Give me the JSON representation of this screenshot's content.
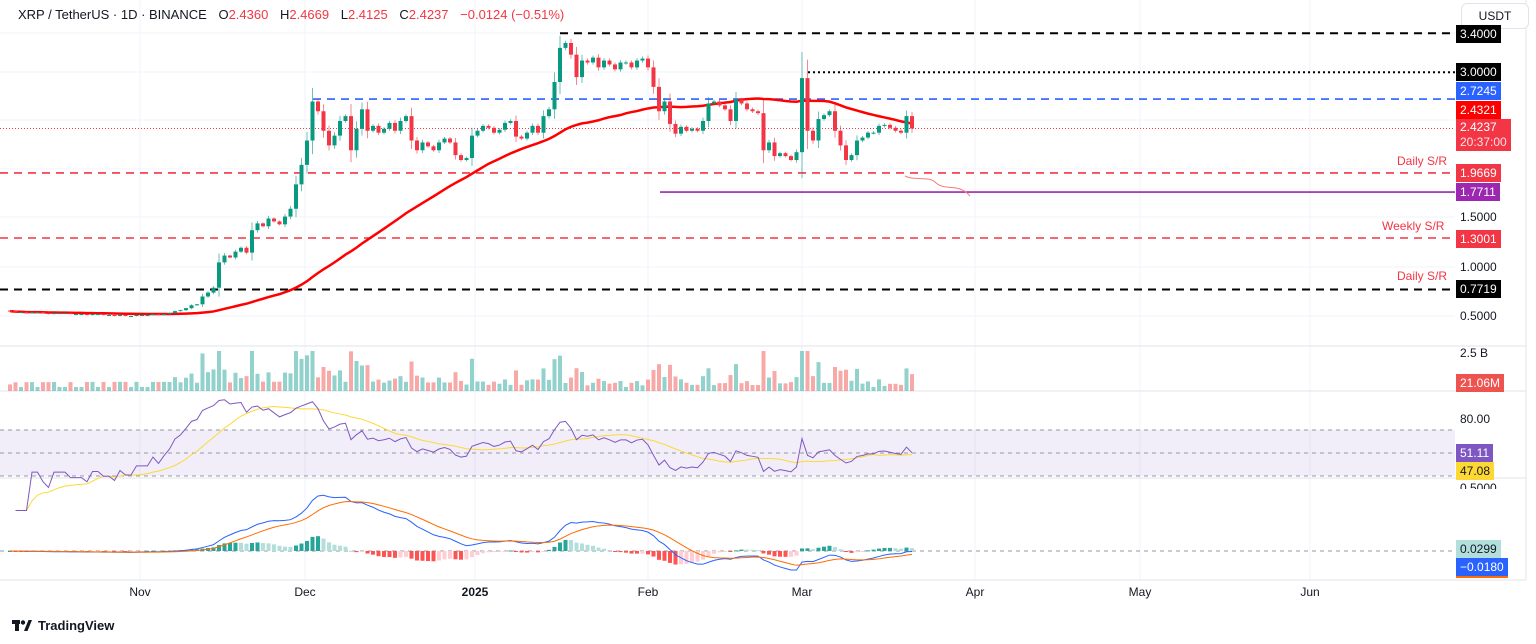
{
  "header": {
    "symbol": "XRP / TetherUS · 1D · BINANCE",
    "open_label": "O",
    "open": "2.4360",
    "high_label": "H",
    "high": "2.4669",
    "low_label": "L",
    "low": "2.4125",
    "close_label": "C",
    "close": "2.4237",
    "change": "−0.0124 (−0.51%)"
  },
  "currency_button": "USDT",
  "price_axis": {
    "ticks": [
      "1.5000",
      "1.0000",
      "0.5000"
    ],
    "labels": {
      "top_level": "3.4000",
      "level_3": "3.0000",
      "blue_level": "2.7245",
      "ma": "2.4321",
      "last": "2.4237",
      "countdown": "20:37:00",
      "daily_sr": "1.9669",
      "purple_level": "1.7711",
      "weekly_sr": "1.3001",
      "daily_sr_low": "0.7719"
    }
  },
  "annotations": {
    "daily_sr_1": "Daily S/R",
    "weekly_sr": "Weekly S/R",
    "daily_sr_2": "Daily S/R"
  },
  "volume_axis": {
    "tick": "2.5 B",
    "last": "21.06M"
  },
  "rsi_axis": {
    "tick": "80.00",
    "rsi": "51.11",
    "rsi_ma": "47.08"
  },
  "macd_axis": {
    "tick": "0.5000",
    "histogram": "0.0299",
    "macd": "−0.0180"
  },
  "time_axis": [
    "Nov",
    "Dec",
    "2025",
    "Feb",
    "Mar",
    "Apr",
    "May",
    "Jun"
  ],
  "brand": "TradingView",
  "colors": {
    "up": "#089981",
    "down": "#f23645",
    "ma": "#ff0000",
    "blue": "#2962ff",
    "purple": "#9c27b0",
    "rsi": "#7e57c2",
    "rsi_ma": "#fdd835",
    "macd": "#2962ff",
    "signal": "#ff6d00"
  },
  "chart_data": {
    "type": "candlestick",
    "timeframe": "1D",
    "x_range": [
      "2024-10-09",
      "2025-03-21"
    ],
    "ylim": [
      0.45,
      3.45
    ],
    "closes": [
      0.55,
      0.54,
      0.54,
      0.53,
      0.54,
      0.54,
      0.53,
      0.52,
      0.53,
      0.53,
      0.53,
      0.52,
      0.52,
      0.52,
      0.51,
      0.52,
      0.52,
      0.51,
      0.51,
      0.5,
      0.51,
      0.5,
      0.5,
      0.51,
      0.51,
      0.51,
      0.52,
      0.51,
      0.52,
      0.53,
      0.55,
      0.56,
      0.58,
      0.61,
      0.62,
      0.7,
      0.74,
      0.79,
      1.05,
      1.12,
      1.1,
      1.16,
      1.2,
      1.15,
      1.38,
      1.45,
      1.42,
      1.5,
      1.47,
      1.44,
      1.52,
      1.6,
      1.85,
      2.05,
      2.3,
      2.7,
      2.6,
      2.4,
      2.25,
      2.35,
      2.5,
      2.55,
      2.2,
      2.42,
      2.62,
      2.4,
      2.45,
      2.38,
      2.42,
      2.48,
      2.4,
      2.5,
      2.55,
      2.3,
      2.2,
      2.28,
      2.24,
      2.2,
      2.28,
      2.32,
      2.28,
      2.15,
      2.1,
      2.12,
      2.35,
      2.4,
      2.45,
      2.43,
      2.38,
      2.41,
      2.48,
      2.5,
      2.34,
      2.32,
      2.38,
      2.45,
      2.38,
      2.55,
      2.62,
      2.9,
      3.25,
      3.3,
      3.18,
      2.95,
      3.12,
      3.1,
      3.15,
      3.05,
      3.12,
      3.08,
      3.03,
      3.1,
      3.1,
      3.05,
      3.12,
      3.14,
      3.05,
      2.85,
      2.6,
      2.7,
      2.47,
      2.37,
      2.44,
      2.4,
      2.42,
      2.4,
      2.5,
      2.68,
      2.7,
      2.66,
      2.62,
      2.5,
      2.72,
      2.68,
      2.62,
      2.6,
      2.58,
      2.2,
      2.28,
      2.14,
      2.17,
      2.14,
      2.1,
      2.18,
      2.94,
      2.4,
      2.3,
      2.52,
      2.56,
      2.6,
      2.4,
      2.25,
      2.1,
      2.15,
      2.3,
      2.33,
      2.38,
      2.38,
      2.45,
      2.46,
      2.43,
      2.4,
      2.38,
      2.55,
      2.4237
    ],
    "horizontal_levels": [
      {
        "value": 3.4,
        "style": "dashed",
        "color": "#000000"
      },
      {
        "value": 3.0,
        "style": "dotted",
        "color": "#000000"
      },
      {
        "value": 2.7245,
        "style": "dashed",
        "color": "#2962ff"
      },
      {
        "value": 1.9669,
        "style": "dashed",
        "color": "#f23645",
        "label": "Daily S/R"
      },
      {
        "value": 1.7711,
        "style": "solid",
        "color": "#9c27b0"
      },
      {
        "value": 1.3001,
        "style": "dashed",
        "color": "#f23645",
        "label": "Weekly S/R"
      },
      {
        "value": 0.7719,
        "style": "dashed",
        "color": "#000000",
        "label": "Daily S/R"
      }
    ],
    "indicators": [
      "MA 50",
      "Volume",
      "RSI 14",
      "MACD 12 26 9"
    ],
    "rsi_bands": [
      70,
      50,
      30
    ]
  }
}
